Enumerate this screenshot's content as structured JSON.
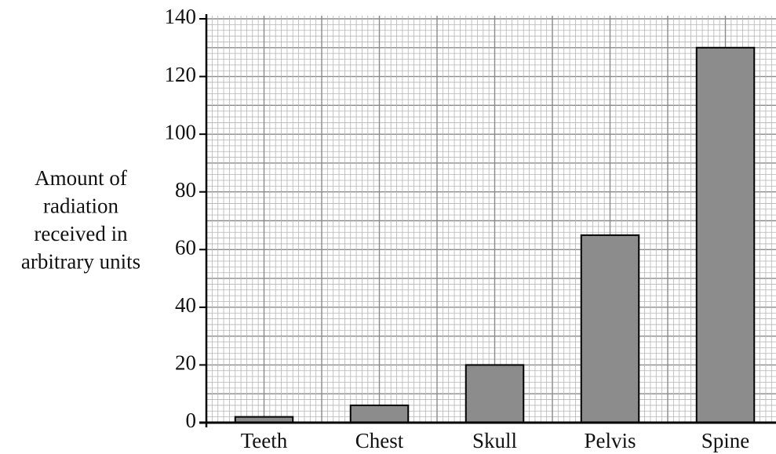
{
  "chart_data": {
    "type": "bar",
    "y_label": [
      "Amount of",
      "radiation",
      "received in",
      "arbitrary units"
    ],
    "categories": [
      "Teeth",
      "Chest",
      "Skull",
      "Pelvis",
      "Spine"
    ],
    "values": [
      2,
      6,
      20,
      65,
      130
    ],
    "color": "#8c8c8c",
    "ylim": [
      0,
      140
    ],
    "yticks": [
      0,
      20,
      40,
      60,
      80,
      100,
      120,
      140
    ],
    "grid": true
  }
}
